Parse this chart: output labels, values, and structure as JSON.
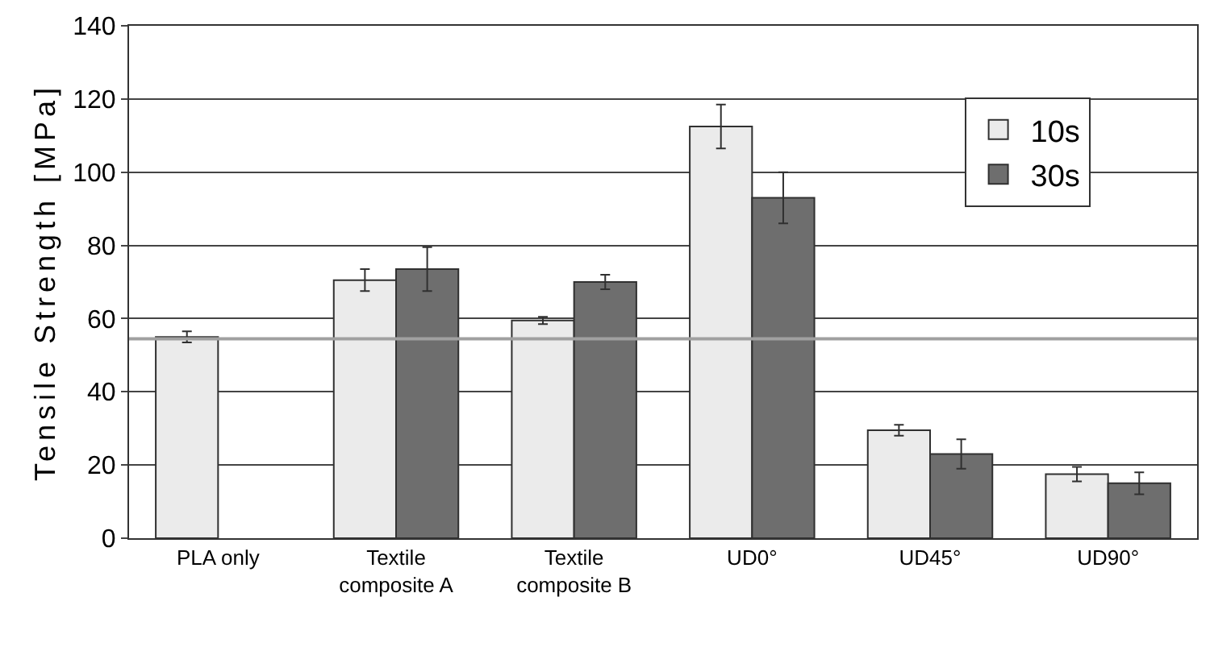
{
  "chart_data": {
    "type": "bar",
    "ylabel": "Tensile Strength [MPa]",
    "categories": [
      "PLA only",
      "Textile\ncomposite A",
      "Textile\ncomposite B",
      "UD0°",
      "UD45°",
      "UD90°"
    ],
    "series": [
      {
        "name": "10s",
        "color": "#ebebeb",
        "values": [
          55,
          70.5,
          59.5,
          112.5,
          29.5,
          17.5
        ],
        "errors": [
          1.5,
          3,
          1,
          6,
          1.5,
          2
        ]
      },
      {
        "name": "30s",
        "color": "#6e6e6e",
        "values": [
          null,
          73.5,
          70,
          93,
          23,
          15
        ],
        "errors": [
          null,
          6,
          2,
          7,
          4,
          3
        ]
      }
    ],
    "ylim": [
      0,
      140
    ],
    "yticks": [
      0,
      20,
      40,
      60,
      80,
      100,
      120,
      140
    ],
    "grid": "y",
    "legend": "top right",
    "ref_lines": [
      {
        "axis": "y",
        "value": 54.5,
        "color": "#a0a0a0"
      }
    ]
  }
}
